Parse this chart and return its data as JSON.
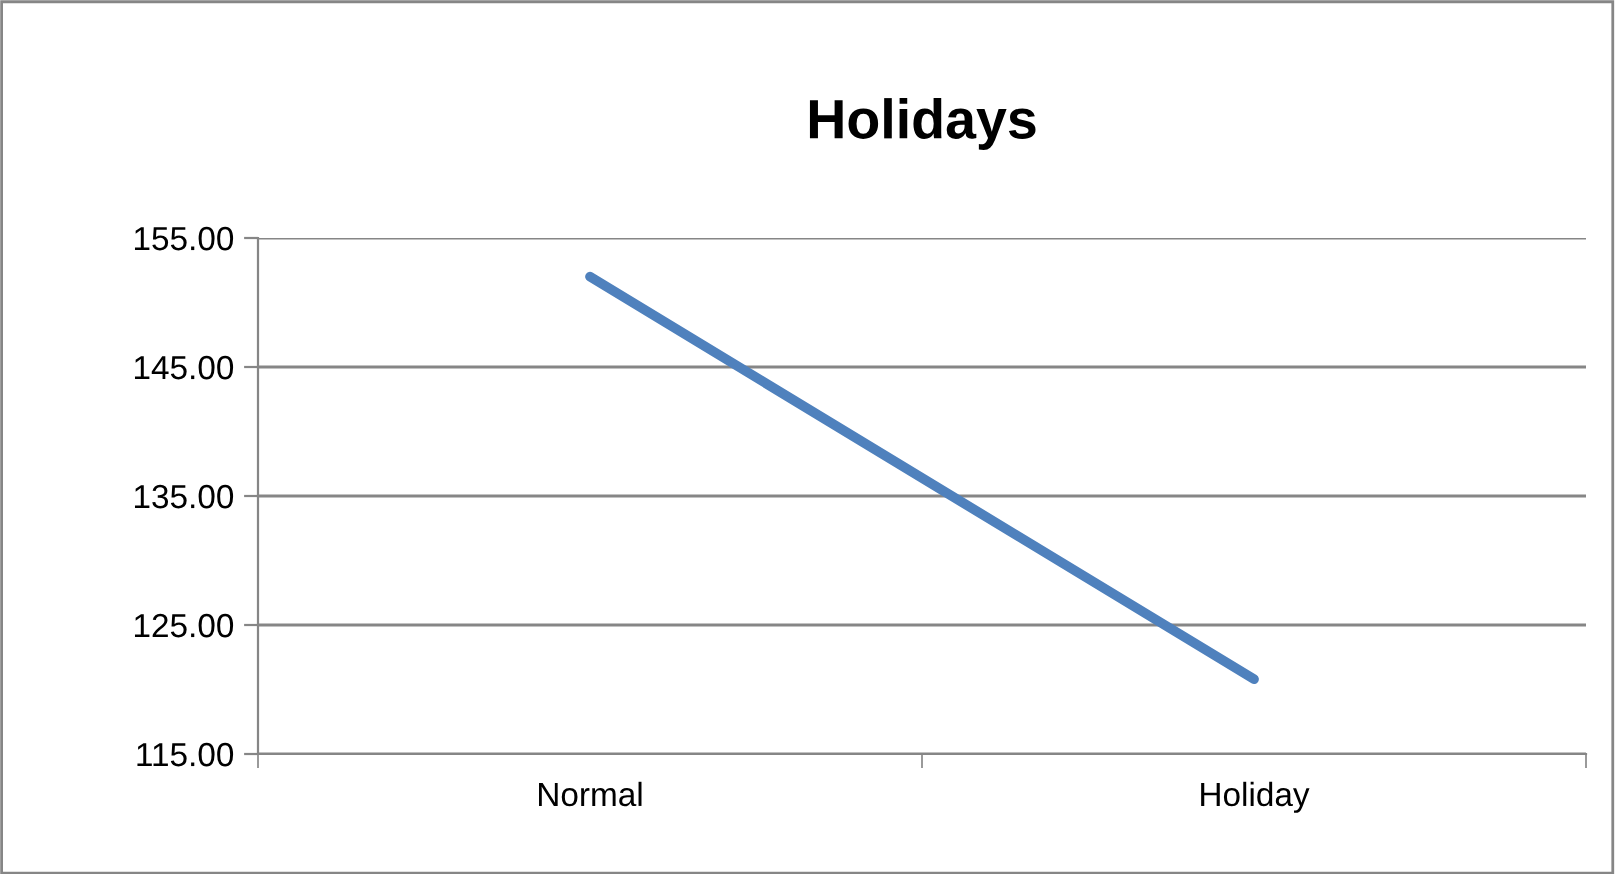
{
  "chart_data": {
    "type": "line",
    "title": "Holidays",
    "categories": [
      "Normal",
      "Holiday"
    ],
    "series": [
      {
        "color": "#4f81bd",
        "values": [
          152.0,
          120.8
        ]
      }
    ],
    "ylim": [
      115,
      155
    ],
    "yticks": [
      {
        "value": 115,
        "label": "115.00"
      },
      {
        "value": 125,
        "label": "125.00"
      },
      {
        "value": 135,
        "label": "135.00"
      },
      {
        "value": 145,
        "label": "145.00"
      },
      {
        "value": 155,
        "label": "155.00"
      }
    ],
    "grid": "y",
    "legend": false,
    "marker": "none",
    "line_style": "solid"
  }
}
